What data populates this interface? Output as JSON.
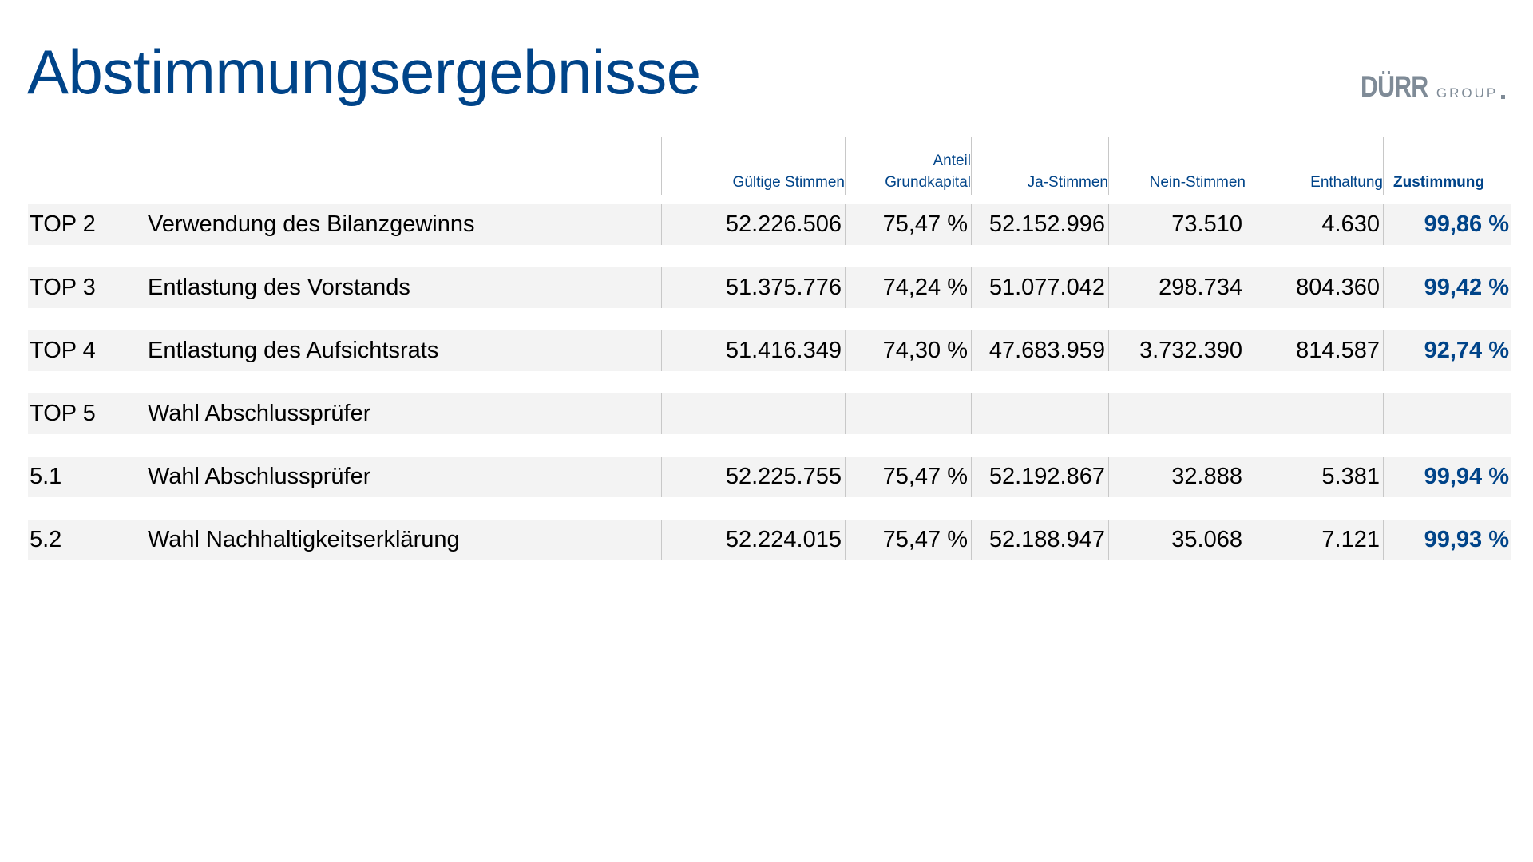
{
  "page": {
    "title": "Abstimmungsergebnisse"
  },
  "logo": {
    "main": "DÜRR",
    "sub": "GROUP"
  },
  "table": {
    "headers": {
      "gueltige_stimmen": "Gültige Stimmen",
      "anteil_line1": "Anteil",
      "anteil_line2": "Grundkapital",
      "ja_stimmen": "Ja-Stimmen",
      "nein_stimmen": "Nein-Stimmen",
      "enthaltung": "Enthaltung",
      "zustimmung": "Zustimmung"
    },
    "rows": [
      {
        "top": "TOP 2",
        "label": "Verwendung des Bilanzgewinns",
        "gueltige": "52.226.506",
        "anteil": "75,47 %",
        "ja": "52.152.996",
        "nein": "73.510",
        "enthaltung": "4.630",
        "zustimmung": "99,86 %"
      },
      {
        "top": "TOP 3",
        "label": "Entlastung des Vorstands",
        "gueltige": "51.375.776",
        "anteil": "74,24 %",
        "ja": "51.077.042",
        "nein": "298.734",
        "enthaltung": "804.360",
        "zustimmung": "99,42 %"
      },
      {
        "top": "TOP 4",
        "label": "Entlastung des Aufsichtsrats",
        "gueltige": "51.416.349",
        "anteil": "74,30 %",
        "ja": "47.683.959",
        "nein": "3.732.390",
        "enthaltung": "814.587",
        "zustimmung": "92,74 %"
      },
      {
        "top": "TOP 5",
        "label": "Wahl Abschlussprüfer",
        "gueltige": "",
        "anteil": "",
        "ja": "",
        "nein": "",
        "enthaltung": "",
        "zustimmung": ""
      },
      {
        "top": "5.1",
        "label": "Wahl Abschlussprüfer",
        "gueltige": "52.225.755",
        "anteil": "75,47 %",
        "ja": "52.192.867",
        "nein": "32.888",
        "enthaltung": "5.381",
        "zustimmung": "99,94 %"
      },
      {
        "top": "5.2",
        "label": "Wahl Nachhaltigkeitserklärung",
        "gueltige": "52.224.015",
        "anteil": "75,47 %",
        "ja": "52.188.947",
        "nein": "35.068",
        "enthaltung": "7.121",
        "zustimmung": "99,93 %"
      }
    ]
  },
  "colors": {
    "brand_blue": "#004489",
    "logo_gray": "#7f8b97",
    "row_background": "#f3f3f3"
  }
}
